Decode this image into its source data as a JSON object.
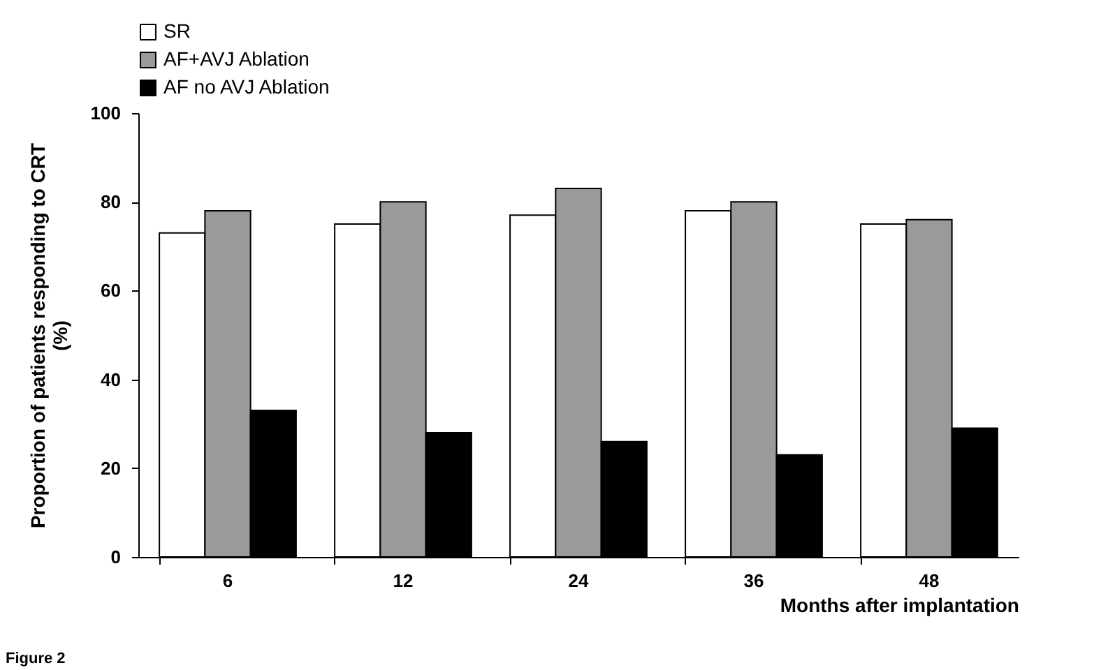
{
  "chart_data": {
    "type": "bar",
    "xlabel": "Months after implantation",
    "ylabel": "Proportion of patients responding to CRT (%)",
    "categories": [
      "6",
      "12",
      "24",
      "36",
      "48"
    ],
    "series": [
      {
        "name": "SR",
        "color": "#ffffff",
        "values": [
          73,
          75,
          77,
          78,
          75
        ]
      },
      {
        "name": "AF+AVJ Ablation",
        "color": "#9a9a9a",
        "values": [
          78,
          80,
          83,
          80,
          76
        ]
      },
      {
        "name": "AF no AVJ Ablation",
        "color": "#000000",
        "values": [
          33,
          28,
          26,
          23,
          29
        ]
      }
    ],
    "ylim": [
      0,
      100
    ],
    "yticks": [
      0,
      20,
      40,
      60,
      80,
      100
    ],
    "grid": false,
    "legend": "top",
    "annotations": [
      "Figure 2"
    ]
  }
}
